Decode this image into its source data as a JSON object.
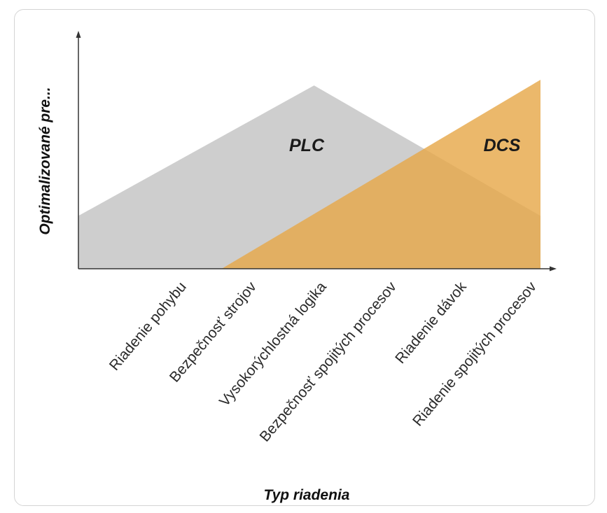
{
  "chart_data": {
    "type": "area",
    "xlabel": "Typ riadenia",
    "ylabel": "Optimalizované pre...",
    "categories": [
      "Riadenie pohybu",
      "Bezpečnosť strojov",
      "Vysokorýchlostná logika",
      "Bezpečnosť spojitých procesov",
      "Riadenie dávok",
      "Riadenie spojitých procesov"
    ],
    "series": [
      {
        "name": "PLC",
        "color": "#c9c9c9",
        "opacity": 0.9,
        "points": [
          [
            0,
            0.28
          ],
          [
            2.55,
            0.97
          ],
          [
            5,
            0.28
          ]
        ]
      },
      {
        "name": "DCS",
        "color": "#e6a84a",
        "opacity": 0.82,
        "points": [
          [
            1.55,
            0
          ],
          [
            5,
            1
          ]
        ]
      }
    ],
    "ylim": [
      0,
      1.02
    ],
    "grid": false
  }
}
